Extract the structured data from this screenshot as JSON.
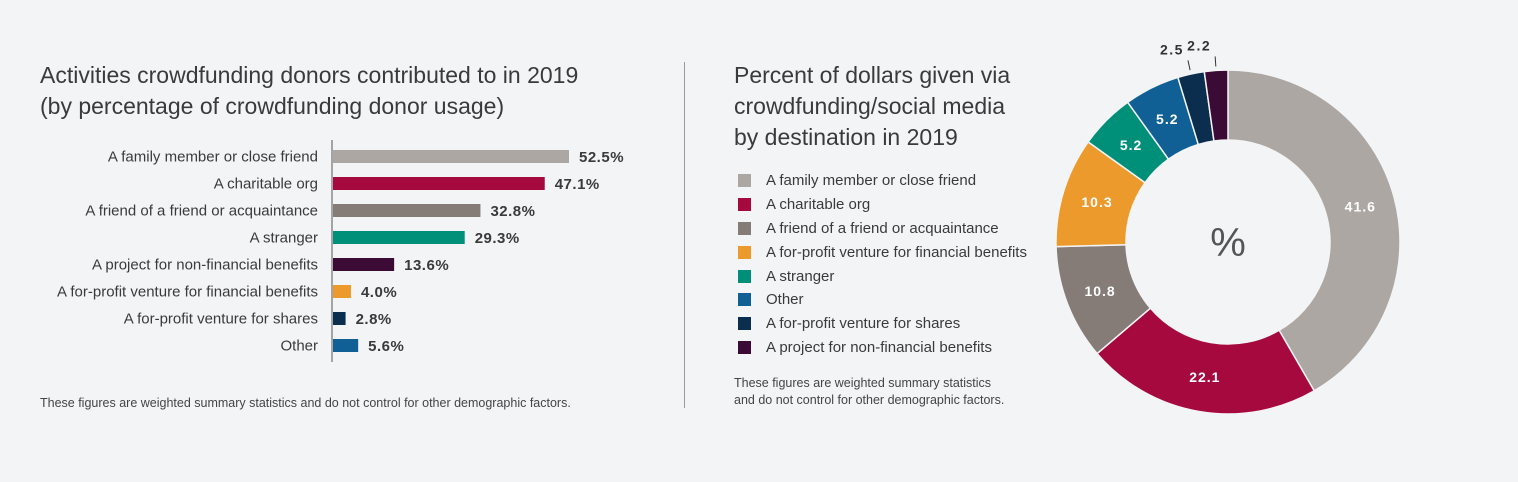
{
  "bar_panel": {
    "title_line1": "Activities crowdfunding donors contributed to in 2019",
    "title_line2": "(by percentage of crowdfunding donor usage)",
    "footnote": "These figures are weighted summary statistics and do not control for other demographic factors."
  },
  "donut_panel": {
    "title_line1": "Percent of dollars given via",
    "title_line2": "crowdfunding/social media",
    "title_line3": "by destination in 2019",
    "center_label": "%",
    "footnote_line1": "These figures are weighted summary statistics",
    "footnote_line2": "and do not control for other demographic factors."
  },
  "chart_data": [
    {
      "type": "bar",
      "orientation": "horizontal",
      "title": "Activities crowdfunding donors contributed to in 2019 (by percentage of crowdfunding donor usage)",
      "categories": [
        "A family member or close friend",
        "A charitable org",
        "A friend of a friend or acquaintance",
        "A stranger",
        "A project for non-financial benefits",
        "A for-profit venture for financial benefits",
        "A for-profit venture for shares",
        "Other"
      ],
      "values": [
        52.5,
        47.1,
        32.8,
        29.3,
        13.6,
        4.0,
        2.8,
        5.6
      ],
      "value_labels": [
        "52.5%",
        "47.1%",
        "32.8%",
        "29.3%",
        "13.6%",
        "4.0%",
        "2.8%",
        "5.6%"
      ],
      "colors": [
        "#aca7a2",
        "#a6093d",
        "#857c78",
        "#00907a",
        "#3c0b35",
        "#ec9a2c",
        "#0b2e4f",
        "#105f95"
      ],
      "grid": false,
      "xlim": [
        0,
        60
      ]
    },
    {
      "type": "pie",
      "variant": "donut",
      "title": "Percent of dollars given via crowdfunding/social media by destination in 2019",
      "labels": [
        "A family member or close friend",
        "A charitable org",
        "A friend of a friend or acquaintance",
        "A for-profit venture for financial benefits",
        "A stranger",
        "Other",
        "A for-profit venture for shares",
        "A project for non-financial benefits"
      ],
      "values": [
        41.6,
        22.1,
        10.8,
        10.3,
        5.2,
        5.2,
        2.5,
        2.2
      ],
      "value_labels": [
        "41.6",
        "22.1",
        "10.8",
        "10.3",
        "5.2",
        "5.2",
        "2.5",
        "2.2"
      ],
      "colors": [
        "#aca7a2",
        "#a6093d",
        "#857c78",
        "#ec9a2c",
        "#00907a",
        "#105f95",
        "#0b2e4f",
        "#3c0b35"
      ],
      "legend_position": "left"
    }
  ]
}
